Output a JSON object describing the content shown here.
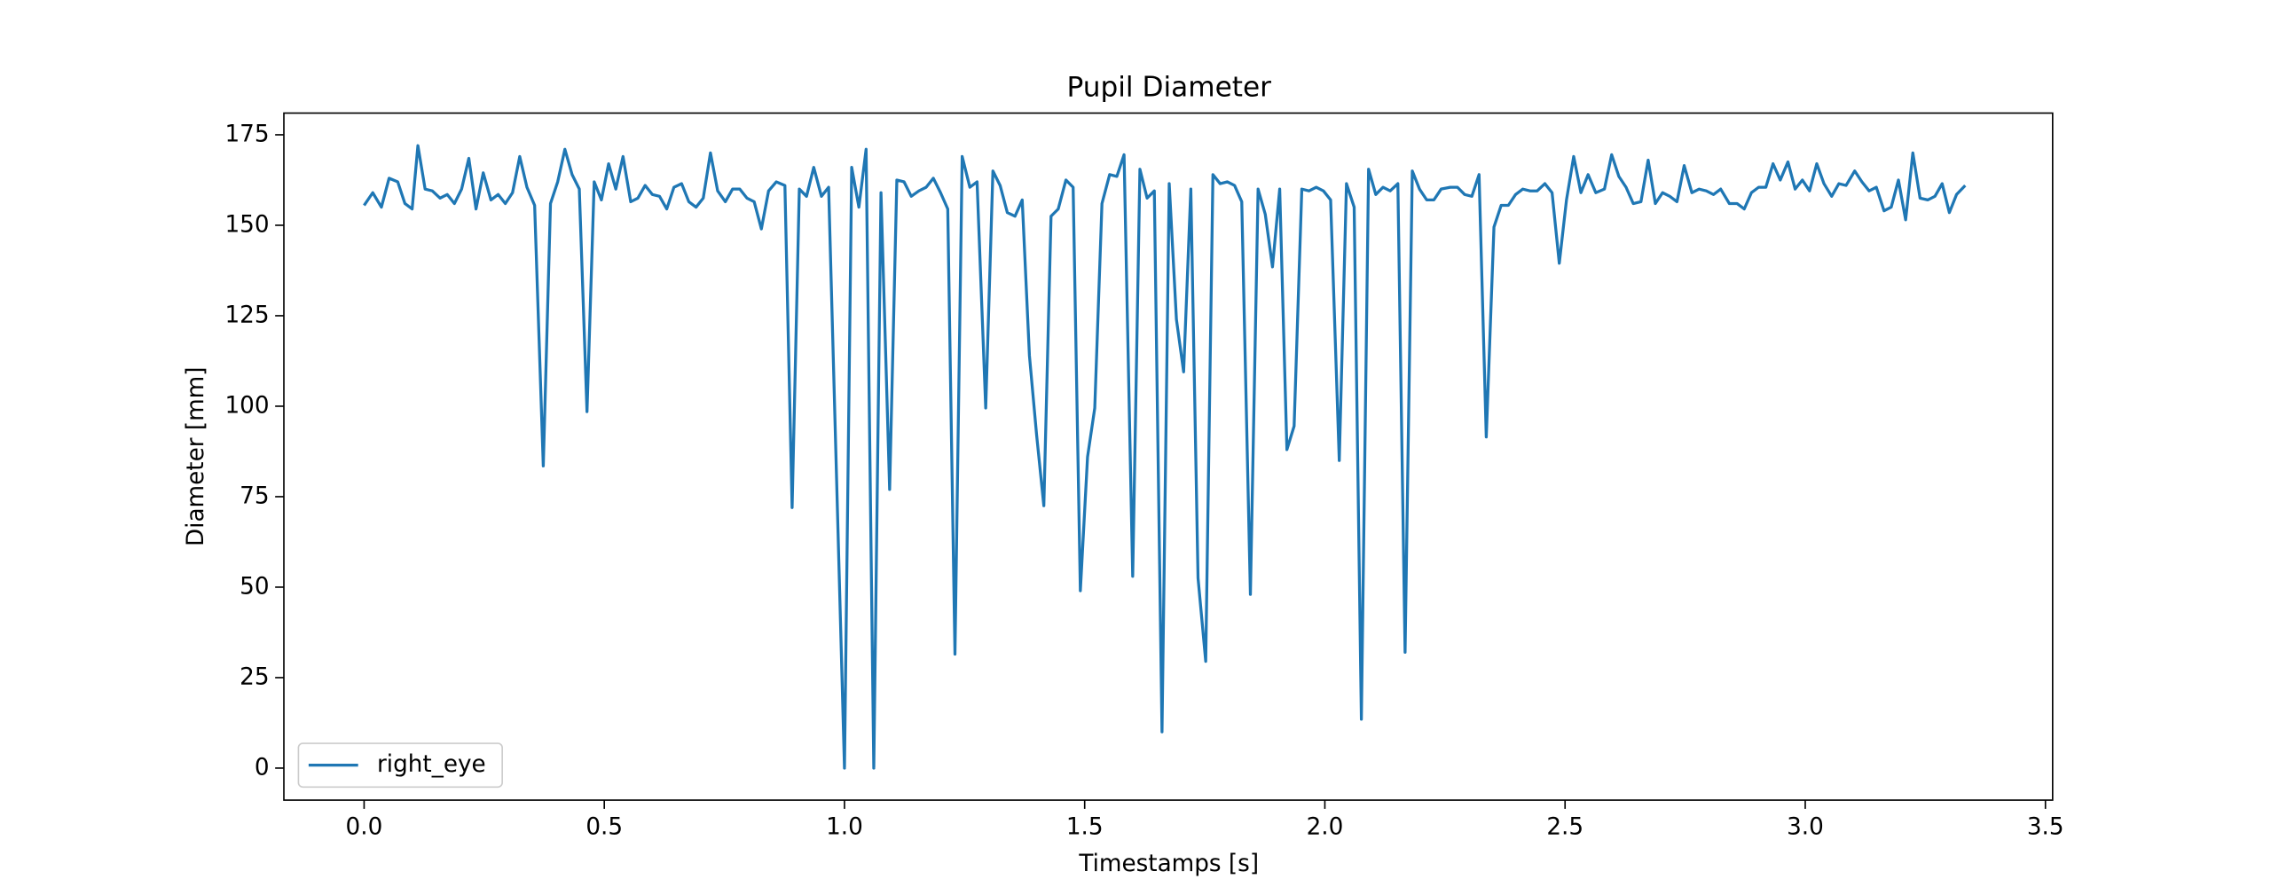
{
  "chart_data": {
    "type": "line",
    "title": "Pupil Diameter",
    "xlabel": "Timestamps [s]",
    "ylabel": "Diameter [mm]",
    "legend": "lower left",
    "grid": false,
    "xlim": [
      -0.167,
      3.515
    ],
    "ylim": [
      -8.85,
      181.0
    ],
    "xticks": [
      {
        "value": 0,
        "label": "0.0"
      },
      0.5,
      {
        "value": 1,
        "label": "1.0"
      },
      1.5,
      {
        "value": 2,
        "label": "2.0"
      },
      2.5,
      {
        "value": 3,
        "label": "3.0"
      },
      3.5
    ],
    "yticks": [
      0,
      25,
      50,
      75,
      100,
      125,
      150,
      175
    ],
    "x": [
      0,
      0.018,
      0.036,
      0.052,
      0.07,
      0.085,
      0.1,
      0.112,
      0.127,
      0.142,
      0.158,
      0.173,
      0.188,
      0.203,
      0.218,
      0.233,
      0.248,
      0.264,
      0.279,
      0.294,
      0.309,
      0.324,
      0.339,
      0.355,
      0.373,
      0.388,
      0.403,
      0.418,
      0.433,
      0.448,
      0.464,
      0.479,
      0.494,
      0.509,
      0.524,
      0.539,
      0.555,
      0.57,
      0.585,
      0.6,
      0.615,
      0.63,
      0.645,
      0.661,
      0.676,
      0.691,
      0.706,
      0.721,
      0.736,
      0.752,
      0.767,
      0.782,
      0.797,
      0.812,
      0.827,
      0.842,
      0.858,
      0.876,
      0.891,
      0.906,
      0.921,
      0.936,
      0.952,
      0.967,
      1.0,
      1.015,
      1.03,
      1.045,
      1.061,
      1.076,
      1.094,
      1.109,
      1.124,
      1.139,
      1.155,
      1.17,
      1.185,
      1.2,
      1.215,
      1.23,
      1.245,
      1.261,
      1.276,
      1.294,
      1.309,
      1.324,
      1.339,
      1.355,
      1.37,
      1.385,
      1.4,
      1.415,
      1.43,
      1.445,
      1.461,
      1.476,
      1.491,
      1.506,
      1.521,
      1.536,
      1.552,
      1.567,
      1.582,
      1.6,
      1.615,
      1.63,
      1.645,
      1.661,
      1.676,
      1.691,
      1.706,
      1.721,
      1.736,
      1.752,
      1.767,
      1.782,
      1.797,
      1.812,
      1.827,
      1.845,
      1.861,
      1.876,
      1.891,
      1.906,
      1.921,
      1.936,
      1.952,
      1.967,
      1.982,
      1.997,
      2.012,
      2.03,
      2.045,
      2.061,
      2.076,
      2.091,
      2.106,
      2.121,
      2.136,
      2.152,
      2.167,
      2.182,
      2.197,
      2.212,
      2.227,
      2.242,
      2.261,
      2.276,
      2.291,
      2.306,
      2.321,
      2.336,
      2.352,
      2.367,
      2.382,
      2.397,
      2.412,
      2.427,
      2.442,
      2.458,
      2.473,
      2.488,
      2.503,
      2.518,
      2.533,
      2.548,
      2.564,
      2.582,
      2.597,
      2.612,
      2.627,
      2.642,
      2.658,
      2.673,
      2.688,
      2.703,
      2.718,
      2.733,
      2.748,
      2.764,
      2.779,
      2.794,
      2.809,
      2.824,
      2.842,
      2.858,
      2.873,
      2.888,
      2.903,
      2.918,
      2.933,
      2.948,
      2.964,
      2.979,
      2.994,
      3.009,
      3.024,
      3.039,
      3.055,
      3.07,
      3.085,
      3.103,
      3.118,
      3.133,
      3.148,
      3.164,
      3.179,
      3.194,
      3.209,
      3.224,
      3.239,
      3.255,
      3.27,
      3.285,
      3.3,
      3.315,
      3.333
    ],
    "series": [
      {
        "name": "right_eye",
        "color": "#1f77b4",
        "values": [
          155.5,
          159,
          155,
          163,
          162,
          156,
          154.5,
          172,
          160,
          159.5,
          157.5,
          158.5,
          156,
          160,
          168.5,
          154.5,
          164.5,
          157,
          158.5,
          156,
          159,
          169,
          160.5,
          155.5,
          83.5,
          156,
          162,
          171,
          164,
          160,
          98.5,
          162,
          157,
          167,
          160,
          169,
          156.5,
          157.5,
          161,
          158.5,
          158,
          154.5,
          160.5,
          161.5,
          156.5,
          155,
          157.5,
          170,
          159.5,
          156.5,
          160,
          160,
          157.5,
          156.5,
          149,
          159.5,
          162,
          161,
          72,
          160,
          158,
          166,
          158,
          160.5,
          0,
          166,
          155,
          171,
          0,
          159,
          77,
          162.5,
          162,
          158,
          159.5,
          160.5,
          163,
          159,
          154.5,
          31.5,
          169,
          160.5,
          162,
          99.5,
          165,
          161,
          153.5,
          152.5,
          157,
          114,
          92,
          72.5,
          152.5,
          154.5,
          162.5,
          160.5,
          49,
          86,
          99.5,
          156,
          164,
          163.5,
          169.5,
          53,
          165.5,
          157.5,
          159.5,
          10,
          161.5,
          124,
          109.5,
          160,
          52.5,
          29.5,
          164,
          161.5,
          162,
          161,
          156.5,
          48,
          160,
          153,
          138.5,
          160,
          88,
          94.5,
          160,
          159.5,
          160.5,
          159.5,
          157,
          85,
          161.5,
          155,
          13.5,
          165.5,
          158.5,
          160.5,
          159.5,
          161.5,
          32,
          165,
          160,
          157,
          157,
          160,
          160.5,
          160.5,
          158.5,
          158,
          164,
          91.5,
          149.5,
          155.5,
          155.5,
          158.5,
          160,
          159.5,
          159.5,
          161.5,
          159,
          139.5,
          157,
          169,
          159,
          164,
          159,
          160,
          169.5,
          163.5,
          160.5,
          156,
          156.5,
          168,
          156,
          159,
          158,
          156.5,
          166.5,
          159,
          160,
          159.5,
          158.5,
          160,
          156,
          156,
          154.5,
          159,
          160.5,
          160.5,
          167,
          162.5,
          167.5,
          160,
          162.5,
          159.5,
          167,
          161.5,
          158,
          161.5,
          161,
          165,
          162,
          159.5,
          160.5,
          154,
          155,
          162.5,
          151.5,
          170,
          157.5,
          157,
          158,
          161.5,
          153.5,
          158.5,
          161
        ]
      }
    ]
  }
}
